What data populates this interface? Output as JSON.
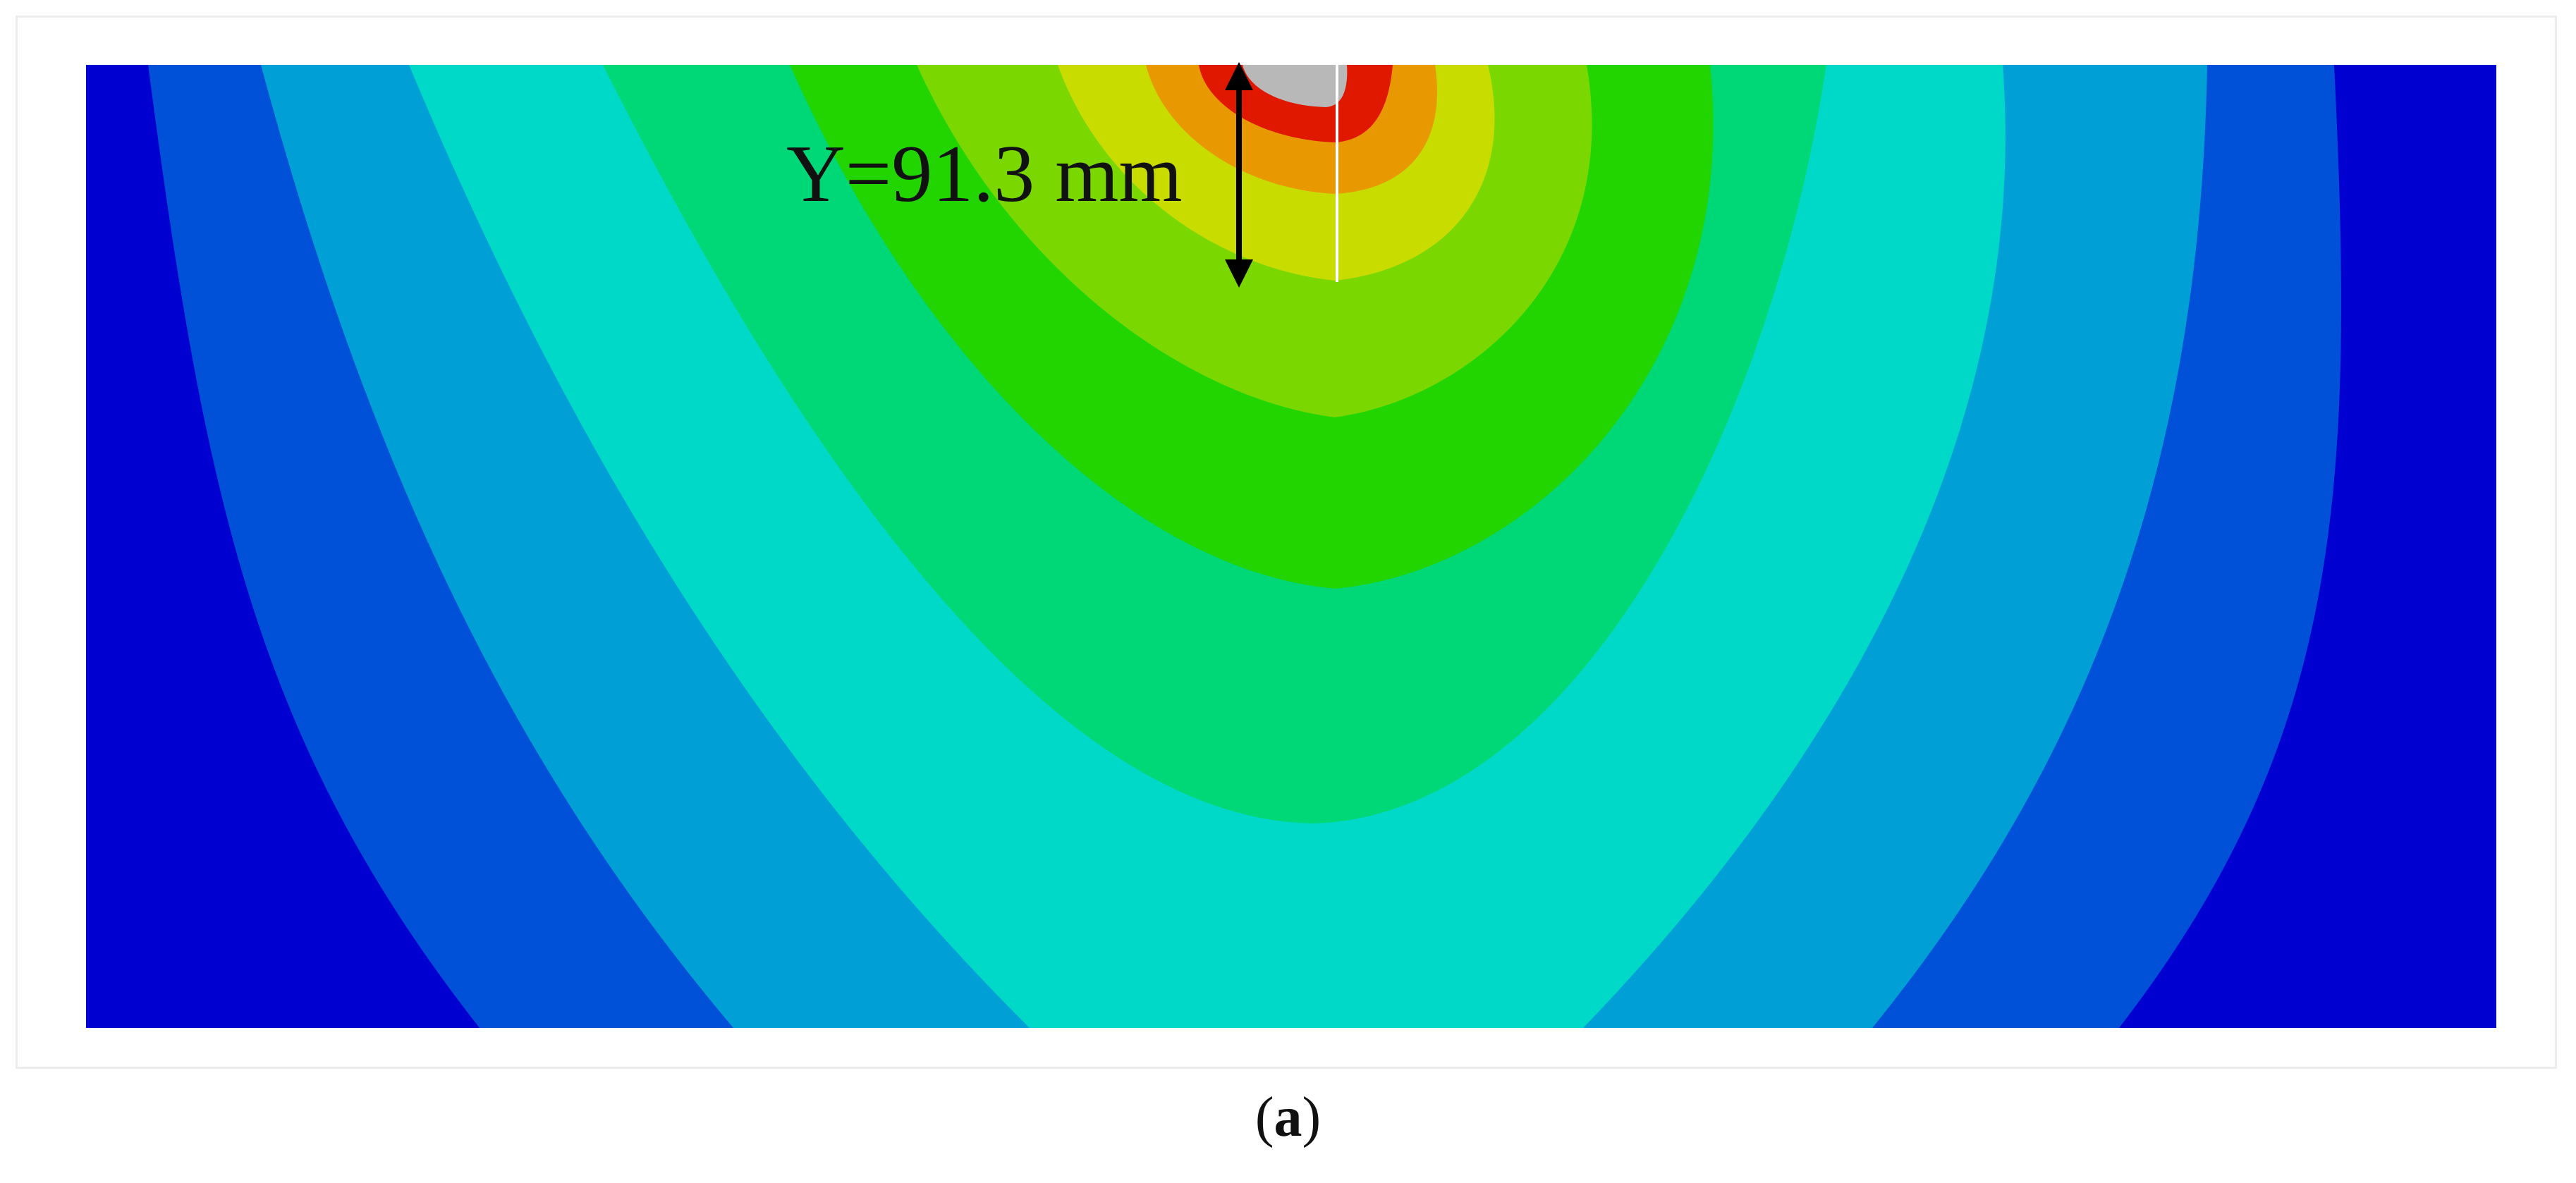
{
  "figure": {
    "measurement_label": "Y=91.3 mm",
    "caption_open": "(",
    "caption_letter": "a",
    "caption_close": ")"
  },
  "contour": {
    "band_colors": [
      "#0000d0",
      "#0050d8",
      "#00a0d6",
      "#00d8c8",
      "#00d878",
      "#22d400",
      "#7ad800",
      "#c8dc00",
      "#e89800",
      "#e01800",
      "#b8b8b8"
    ],
    "center_line_color": "#ffffff",
    "arrow_color": "#000000"
  }
}
